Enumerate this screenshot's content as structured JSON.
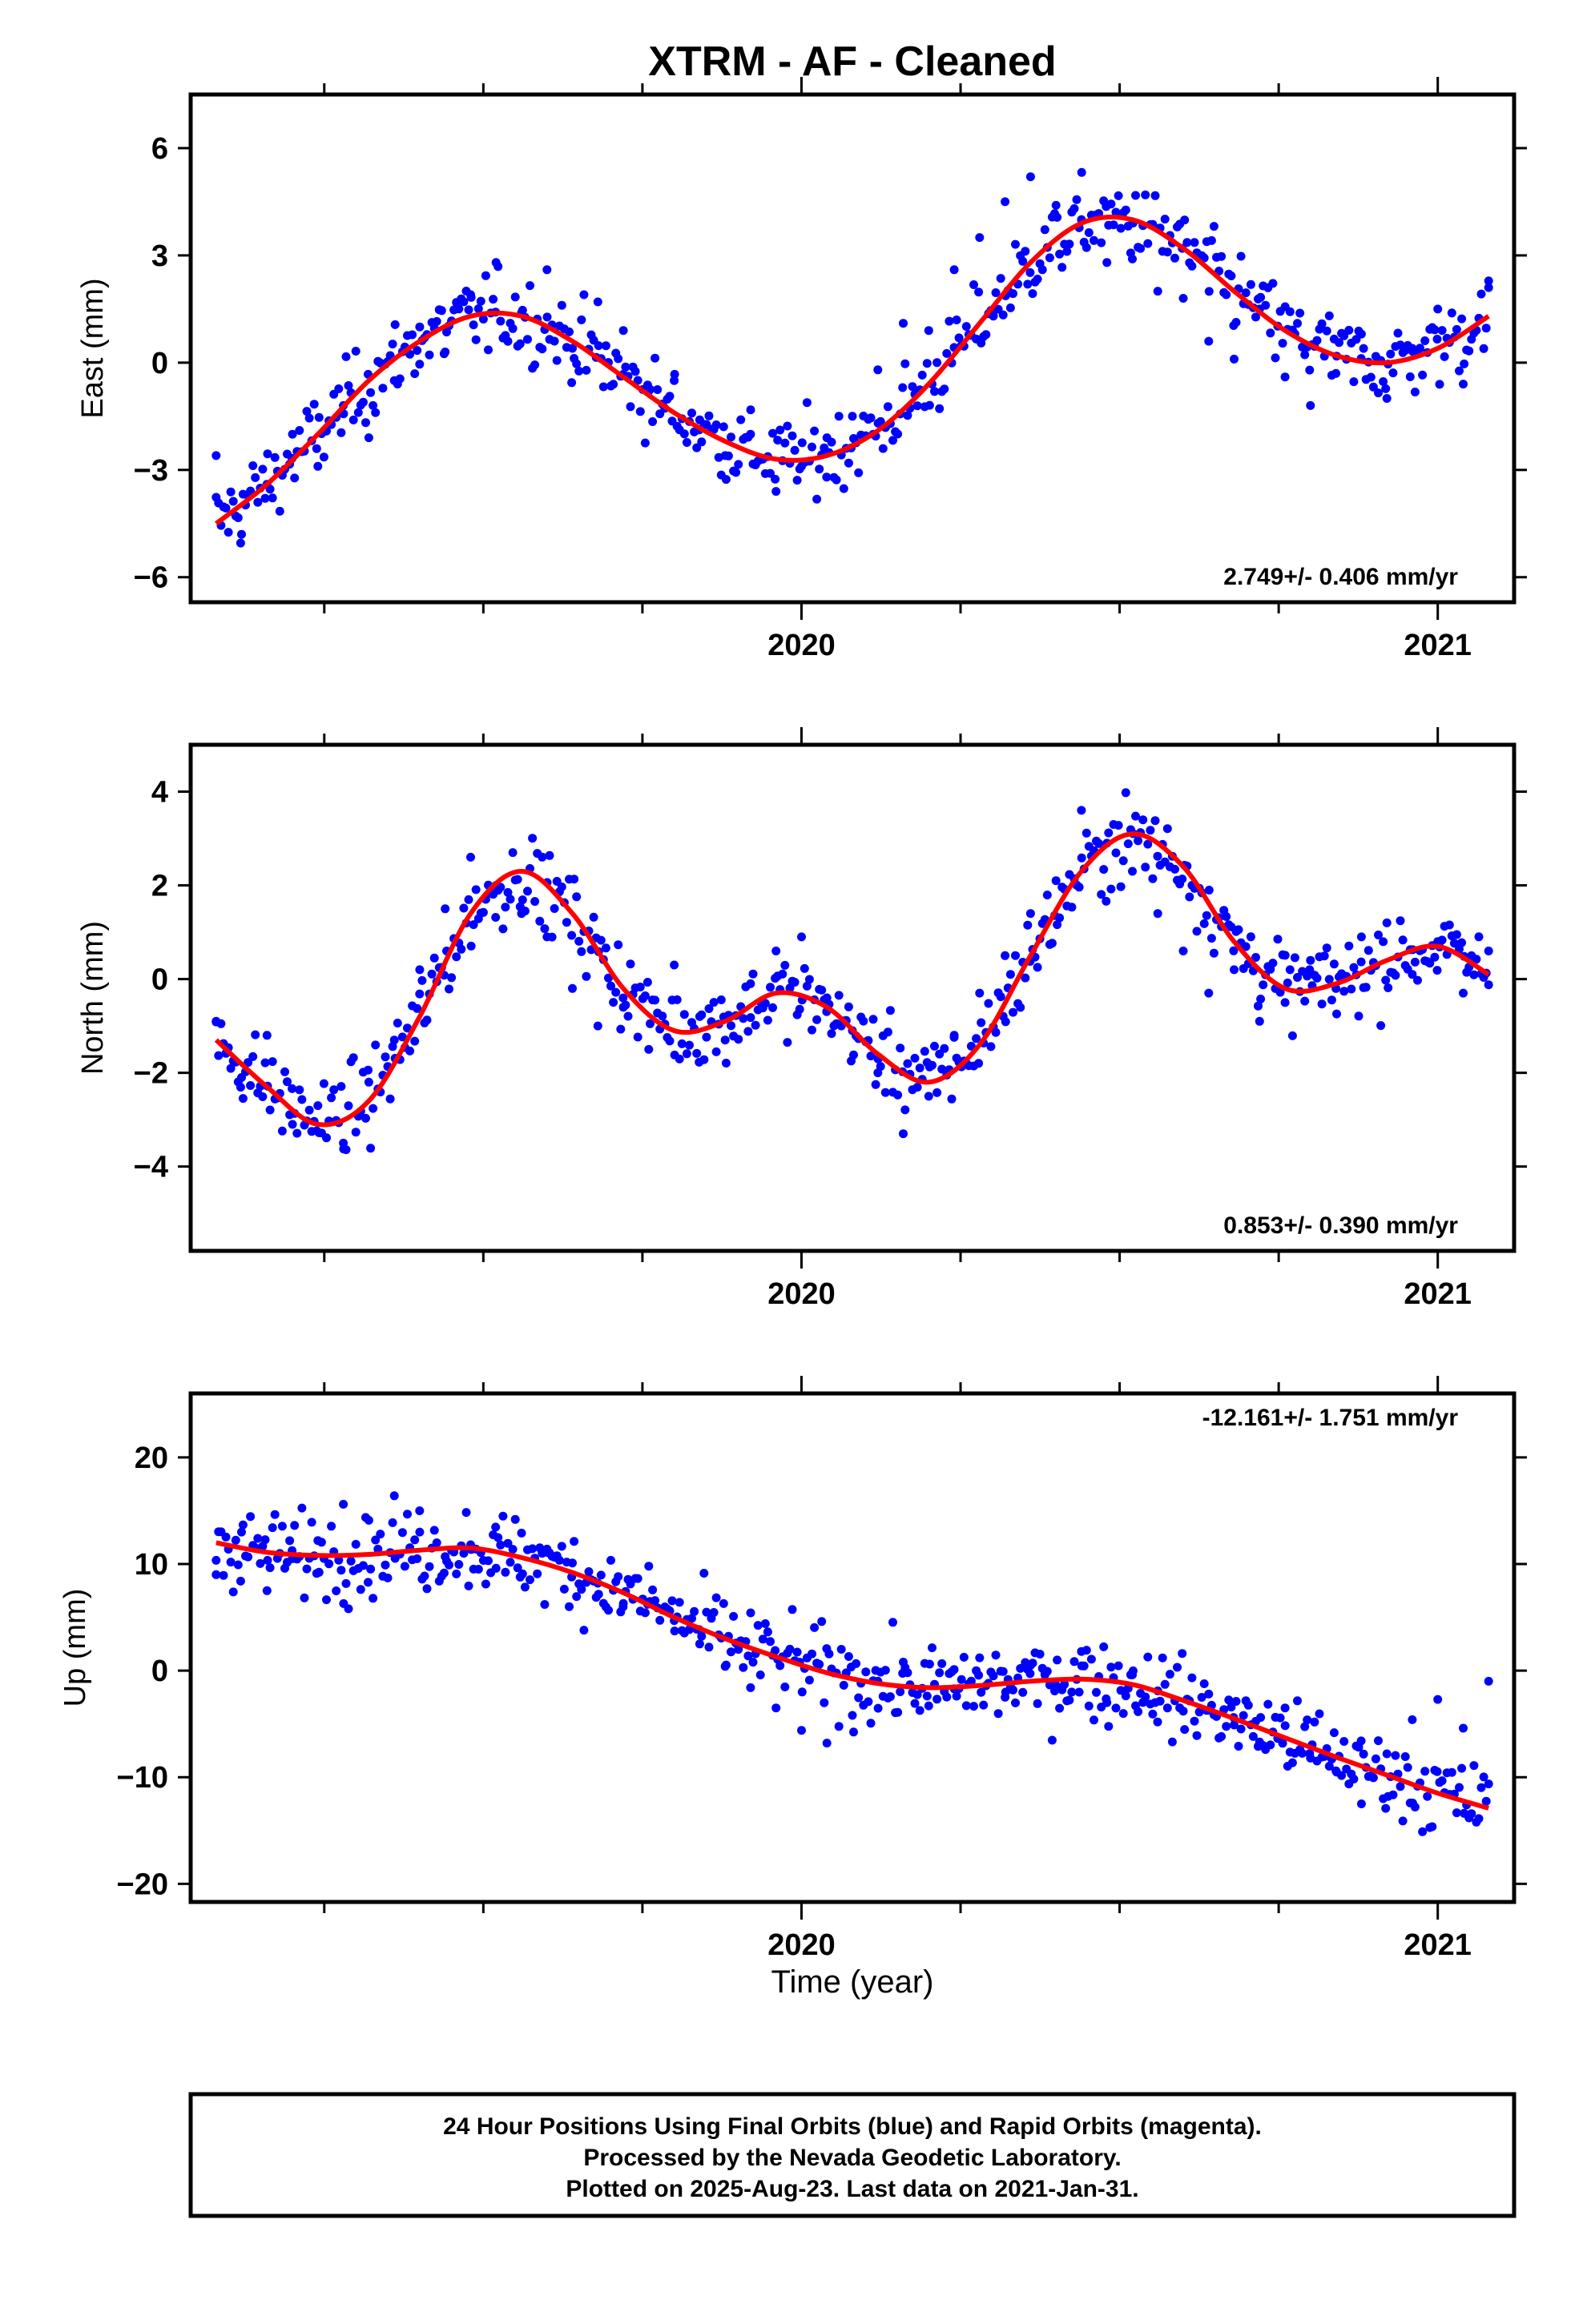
{
  "figure": {
    "title": "XTRM  - AF - Cleaned",
    "xlabel": "Time (year)",
    "footer": {
      "lines": [
        "24 Hour Positions Using Final Orbits (blue) and Rapid Orbits (magenta).",
        "Processed by the Nevada Geodetic Laboratory.",
        "Plotted on 2025-Aug-23. Last data on 2021-Jan-31."
      ]
    },
    "colors": {
      "data": "#0000ff",
      "fit": "#ff0000",
      "frame": "#000000"
    }
  },
  "chart_data": [
    {
      "type": "scatter",
      "panel": "east",
      "ylabel": "East (mm)",
      "rate_label": "2.749+/- 0.406 mm/yr",
      "xlim": [
        2019.04,
        2021.12
      ],
      "ylim": [
        -6.7,
        7.5
      ],
      "yticks": [
        -6,
        -3,
        0,
        3,
        6
      ],
      "yticklabels": [
        "−6",
        "−3",
        "0",
        "3",
        "6"
      ],
      "xticks": [
        2020,
        2021
      ],
      "xticklabels": [
        "2020",
        "2021"
      ],
      "series": [
        {
          "name": "Final Orbits (blue)",
          "trend": {
            "t0": 2019.08,
            "y0": -4.5,
            "rate": 2.749
          },
          "points": [
            [
              2019.08,
              -2.6
            ],
            [
              2019.12,
              -4.8
            ],
            [
              2019.16,
              -3.4
            ],
            [
              2019.2,
              -2.0
            ],
            [
              2019.24,
              -2.9
            ],
            [
              2019.28,
              -1.2
            ],
            [
              2019.32,
              -2.1
            ],
            [
              2019.36,
              -0.5
            ],
            [
              2019.4,
              1.0
            ],
            [
              2019.44,
              0.3
            ],
            [
              2019.48,
              1.9
            ],
            [
              2019.52,
              2.8
            ],
            [
              2019.56,
              1.4
            ],
            [
              2019.6,
              2.6
            ],
            [
              2019.64,
              0.4
            ],
            [
              2019.68,
              1.7
            ],
            [
              2019.72,
              0.9
            ],
            [
              2019.76,
              -0.8
            ],
            [
              2019.8,
              -0.5
            ],
            [
              2019.84,
              -1.6
            ],
            [
              2019.88,
              -2.6
            ],
            [
              2019.92,
              -2.0
            ],
            [
              2019.96,
              -3.6
            ],
            [
              2020.0,
              -2.9
            ],
            [
              2020.04,
              -2.1
            ],
            [
              2020.08,
              -1.5
            ],
            [
              2020.12,
              -0.2
            ],
            [
              2020.16,
              1.1
            ],
            [
              2020.2,
              0.9
            ],
            [
              2020.24,
              2.6
            ],
            [
              2020.28,
              3.5
            ],
            [
              2020.32,
              4.5
            ],
            [
              2020.36,
              5.2
            ],
            [
              2020.4,
              4.4
            ],
            [
              2020.44,
              4.0
            ],
            [
              2020.48,
              2.8
            ],
            [
              2020.52,
              2.9
            ],
            [
              2020.56,
              2.0
            ],
            [
              2020.6,
              1.8
            ],
            [
              2020.64,
              0.6
            ],
            [
              2020.68,
              0.1
            ],
            [
              2020.72,
              1.5
            ],
            [
              2020.76,
              -0.4
            ],
            [
              2020.8,
              -1.2
            ],
            [
              2020.84,
              -0.3
            ],
            [
              2020.88,
              0.8
            ],
            [
              2020.92,
              -1.0
            ],
            [
              2020.96,
              0.4
            ],
            [
              2021.0,
              1.5
            ],
            [
              2021.04,
              -0.6
            ],
            [
              2021.08,
              2.1
            ]
          ],
          "fit": [
            [
              2019.08,
              -4.5
            ],
            [
              2019.16,
              -3.4
            ],
            [
              2019.24,
              -2.0
            ],
            [
              2019.32,
              -0.5
            ],
            [
              2019.4,
              0.6
            ],
            [
              2019.48,
              1.3
            ],
            [
              2019.56,
              1.3
            ],
            [
              2019.64,
              0.6
            ],
            [
              2019.72,
              -0.4
            ],
            [
              2019.8,
              -1.4
            ],
            [
              2019.88,
              -2.2
            ],
            [
              2019.96,
              -2.7
            ],
            [
              2020.04,
              -2.6
            ],
            [
              2020.12,
              -1.9
            ],
            [
              2020.2,
              -0.6
            ],
            [
              2020.28,
              1.1
            ],
            [
              2020.36,
              2.8
            ],
            [
              2020.44,
              3.9
            ],
            [
              2020.52,
              4.0
            ],
            [
              2020.6,
              3.2
            ],
            [
              2020.68,
              2.0
            ],
            [
              2020.76,
              0.9
            ],
            [
              2020.84,
              0.2
            ],
            [
              2020.92,
              0.0
            ],
            [
              2021.0,
              0.4
            ],
            [
              2021.08,
              1.3
            ]
          ]
        }
      ]
    },
    {
      "type": "scatter",
      "panel": "north",
      "ylabel": "North (mm)",
      "rate_label": "0.853+/- 0.390 mm/yr",
      "xlim": [
        2019.04,
        2021.12
      ],
      "ylim": [
        -5.8,
        5.0
      ],
      "yticks": [
        -4,
        -2,
        0,
        2,
        4
      ],
      "yticklabels": [
        "−4",
        "−2",
        "0",
        "2",
        "4"
      ],
      "xticks": [
        2020,
        2021
      ],
      "xticklabels": [
        "2020",
        "2021"
      ],
      "series": [
        {
          "name": "Final Orbits (blue)",
          "trend": {
            "t0": 2019.08,
            "y0": -1.4,
            "rate": 0.853
          },
          "points": [
            [
              2019.08,
              -0.9
            ],
            [
              2019.12,
              -2.1
            ],
            [
              2019.16,
              -1.2
            ],
            [
              2019.2,
              -3.1
            ],
            [
              2019.24,
              -2.7
            ],
            [
              2019.28,
              -3.5
            ],
            [
              2019.32,
              -2.2
            ],
            [
              2019.36,
              -1.3
            ],
            [
              2019.4,
              0.2
            ],
            [
              2019.44,
              1.5
            ],
            [
              2019.48,
              2.6
            ],
            [
              2019.52,
              2.0
            ],
            [
              2019.56,
              1.4
            ],
            [
              2019.6,
              0.9
            ],
            [
              2019.64,
              -0.2
            ],
            [
              2019.68,
              -1.0
            ],
            [
              2019.72,
              -0.6
            ],
            [
              2019.76,
              -1.5
            ],
            [
              2019.8,
              0.3
            ],
            [
              2019.84,
              -0.8
            ],
            [
              2019.88,
              -1.3
            ],
            [
              2019.92,
              -0.1
            ],
            [
              2019.96,
              0.6
            ],
            [
              2020.0,
              0.9
            ],
            [
              2020.04,
              -0.4
            ],
            [
              2020.08,
              -1.1
            ],
            [
              2020.12,
              -2.0
            ],
            [
              2020.16,
              -3.3
            ],
            [
              2020.2,
              -2.5
            ],
            [
              2020.24,
              -1.2
            ],
            [
              2020.28,
              -0.3
            ],
            [
              2020.32,
              0.5
            ],
            [
              2020.36,
              1.4
            ],
            [
              2020.4,
              2.1
            ],
            [
              2020.44,
              3.6
            ],
            [
              2020.48,
              2.9
            ],
            [
              2020.52,
              2.3
            ],
            [
              2020.56,
              1.4
            ],
            [
              2020.6,
              0.6
            ],
            [
              2020.64,
              -0.3
            ],
            [
              2020.68,
              0.2
            ],
            [
              2020.72,
              -0.9
            ],
            [
              2020.76,
              -0.5
            ],
            [
              2020.8,
              0.4
            ],
            [
              2020.84,
              -0.2
            ],
            [
              2020.88,
              0.9
            ],
            [
              2020.92,
              1.2
            ],
            [
              2020.96,
              0.1
            ],
            [
              2021.0,
              0.8
            ],
            [
              2021.04,
              -0.3
            ],
            [
              2021.08,
              0.6
            ]
          ],
          "fit": [
            [
              2019.08,
              -1.3
            ],
            [
              2019.16,
              -2.3
            ],
            [
              2019.24,
              -3.1
            ],
            [
              2019.32,
              -2.6
            ],
            [
              2019.4,
              -0.8
            ],
            [
              2019.48,
              1.4
            ],
            [
              2019.56,
              2.3
            ],
            [
              2019.64,
              1.4
            ],
            [
              2019.72,
              -0.2
            ],
            [
              2019.8,
              -1.1
            ],
            [
              2019.88,
              -0.9
            ],
            [
              2019.96,
              -0.3
            ],
            [
              2020.04,
              -0.6
            ],
            [
              2020.12,
              -1.6
            ],
            [
              2020.2,
              -2.2
            ],
            [
              2020.28,
              -1.4
            ],
            [
              2020.36,
              0.5
            ],
            [
              2020.44,
              2.3
            ],
            [
              2020.52,
              3.1
            ],
            [
              2020.6,
              2.4
            ],
            [
              2020.68,
              0.8
            ],
            [
              2020.76,
              -0.2
            ],
            [
              2020.84,
              -0.1
            ],
            [
              2020.92,
              0.4
            ],
            [
              2021.0,
              0.7
            ],
            [
              2021.08,
              0.1
            ]
          ]
        }
      ]
    },
    {
      "type": "scatter",
      "panel": "up",
      "ylabel": "Up (mm)",
      "rate_label": "-12.161+/- 1.751 mm/yr",
      "xlim": [
        2019.04,
        2021.12
      ],
      "ylim": [
        -21.7,
        26.0
      ],
      "yticks": [
        -20,
        -10,
        0,
        10,
        20
      ],
      "yticklabels": [
        "−20",
        "−10",
        "0",
        "10",
        "20"
      ],
      "xticks": [
        2020,
        2021
      ],
      "xticklabels": [
        "2020",
        "2021"
      ],
      "series": [
        {
          "name": "Final Orbits (blue)",
          "trend": {
            "t0": 2019.08,
            "y0": 12.0,
            "rate": -12.161
          },
          "points": [
            [
              2019.08,
              9.0
            ],
            [
              2019.12,
              13.0
            ],
            [
              2019.16,
              7.5
            ],
            [
              2019.2,
              10.5
            ],
            [
              2019.24,
              12.2
            ],
            [
              2019.28,
              15.6
            ],
            [
              2019.32,
              14.1
            ],
            [
              2019.36,
              16.4
            ],
            [
              2019.4,
              13.0
            ],
            [
              2019.44,
              10.7
            ],
            [
              2019.48,
              11.8
            ],
            [
              2019.52,
              9.6
            ],
            [
              2019.56,
              12.9
            ],
            [
              2019.6,
              11.4
            ],
            [
              2019.64,
              10.1
            ],
            [
              2019.68,
              8.2
            ],
            [
              2019.72,
              6.3
            ],
            [
              2019.76,
              9.8
            ],
            [
              2019.8,
              4.7
            ],
            [
              2019.84,
              2.5
            ],
            [
              2019.88,
              0.4
            ],
            [
              2019.92,
              -1.6
            ],
            [
              2019.96,
              -3.5
            ],
            [
              2020.0,
              -5.6
            ],
            [
              2020.04,
              -6.8
            ],
            [
              2020.08,
              -4.2
            ],
            [
              2020.12,
              -1.0
            ],
            [
              2020.16,
              0.8
            ],
            [
              2020.2,
              -3.3
            ],
            [
              2020.24,
              -1.7
            ],
            [
              2020.28,
              1.2
            ],
            [
              2020.32,
              -2.5
            ],
            [
              2020.36,
              0.5
            ],
            [
              2020.4,
              -1.4
            ],
            [
              2020.44,
              1.8
            ],
            [
              2020.48,
              -3.0
            ],
            [
              2020.52,
              -0.4
            ],
            [
              2020.56,
              -1.9
            ],
            [
              2020.6,
              -3.8
            ],
            [
              2020.64,
              -2.2
            ],
            [
              2020.68,
              -5.1
            ],
            [
              2020.72,
              -6.7
            ],
            [
              2020.76,
              -3.5
            ],
            [
              2020.8,
              -8.2
            ],
            [
              2020.84,
              -9.4
            ],
            [
              2020.88,
              -12.5
            ],
            [
              2020.92,
              -7.8
            ],
            [
              2020.96,
              -4.6
            ],
            [
              2021.0,
              -2.7
            ],
            [
              2021.04,
              -5.4
            ],
            [
              2021.08,
              -1.0
            ]
          ],
          "fit": [
            [
              2019.08,
              12.0
            ],
            [
              2019.16,
              11.1
            ],
            [
              2019.24,
              10.8
            ],
            [
              2019.32,
              10.9
            ],
            [
              2019.4,
              11.3
            ],
            [
              2019.48,
              11.5
            ],
            [
              2019.56,
              10.6
            ],
            [
              2019.64,
              9.2
            ],
            [
              2019.72,
              7.3
            ],
            [
              2019.8,
              5.0
            ],
            [
              2019.88,
              3.0
            ],
            [
              2019.96,
              1.3
            ],
            [
              2020.04,
              -0.2
            ],
            [
              2020.12,
              -1.2
            ],
            [
              2020.2,
              -1.6
            ],
            [
              2020.28,
              -1.4
            ],
            [
              2020.36,
              -1.0
            ],
            [
              2020.44,
              -0.8
            ],
            [
              2020.52,
              -1.3
            ],
            [
              2020.6,
              -2.8
            ],
            [
              2020.68,
              -4.5
            ],
            [
              2020.76,
              -6.3
            ],
            [
              2020.84,
              -8.1
            ],
            [
              2020.92,
              -9.8
            ],
            [
              2021.0,
              -11.5
            ],
            [
              2021.08,
              -12.9
            ]
          ]
        }
      ]
    }
  ]
}
